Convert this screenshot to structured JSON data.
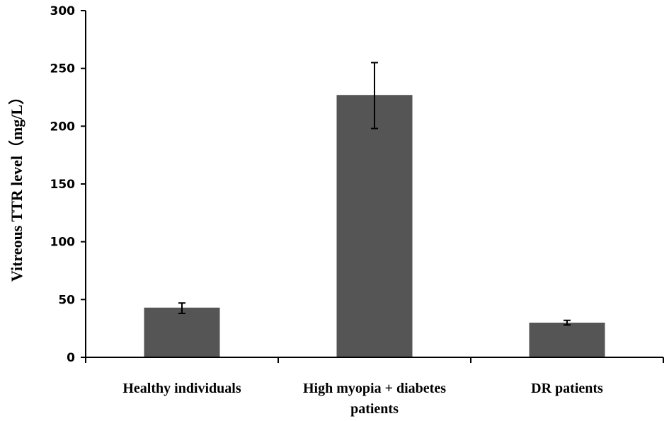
{
  "chart_data": {
    "type": "bar",
    "title": "",
    "xlabel": "",
    "ylabel": "Vitreous TTR level（mg/L）",
    "ylim": [
      0,
      300
    ],
    "yticks": [
      0,
      50,
      100,
      150,
      200,
      250,
      300
    ],
    "categories": [
      [
        "Healthy individuals"
      ],
      [
        "High myopia + diabetes",
        "patients"
      ],
      [
        "DR patients"
      ]
    ],
    "values": [
      43,
      227,
      30
    ],
    "errors": [
      [
        38,
        47
      ],
      [
        198,
        255
      ],
      [
        28,
        32
      ]
    ],
    "grid": false,
    "legend": "none",
    "colors": {
      "bar": "#555555",
      "axis": "#000000",
      "error": "#000000"
    }
  }
}
